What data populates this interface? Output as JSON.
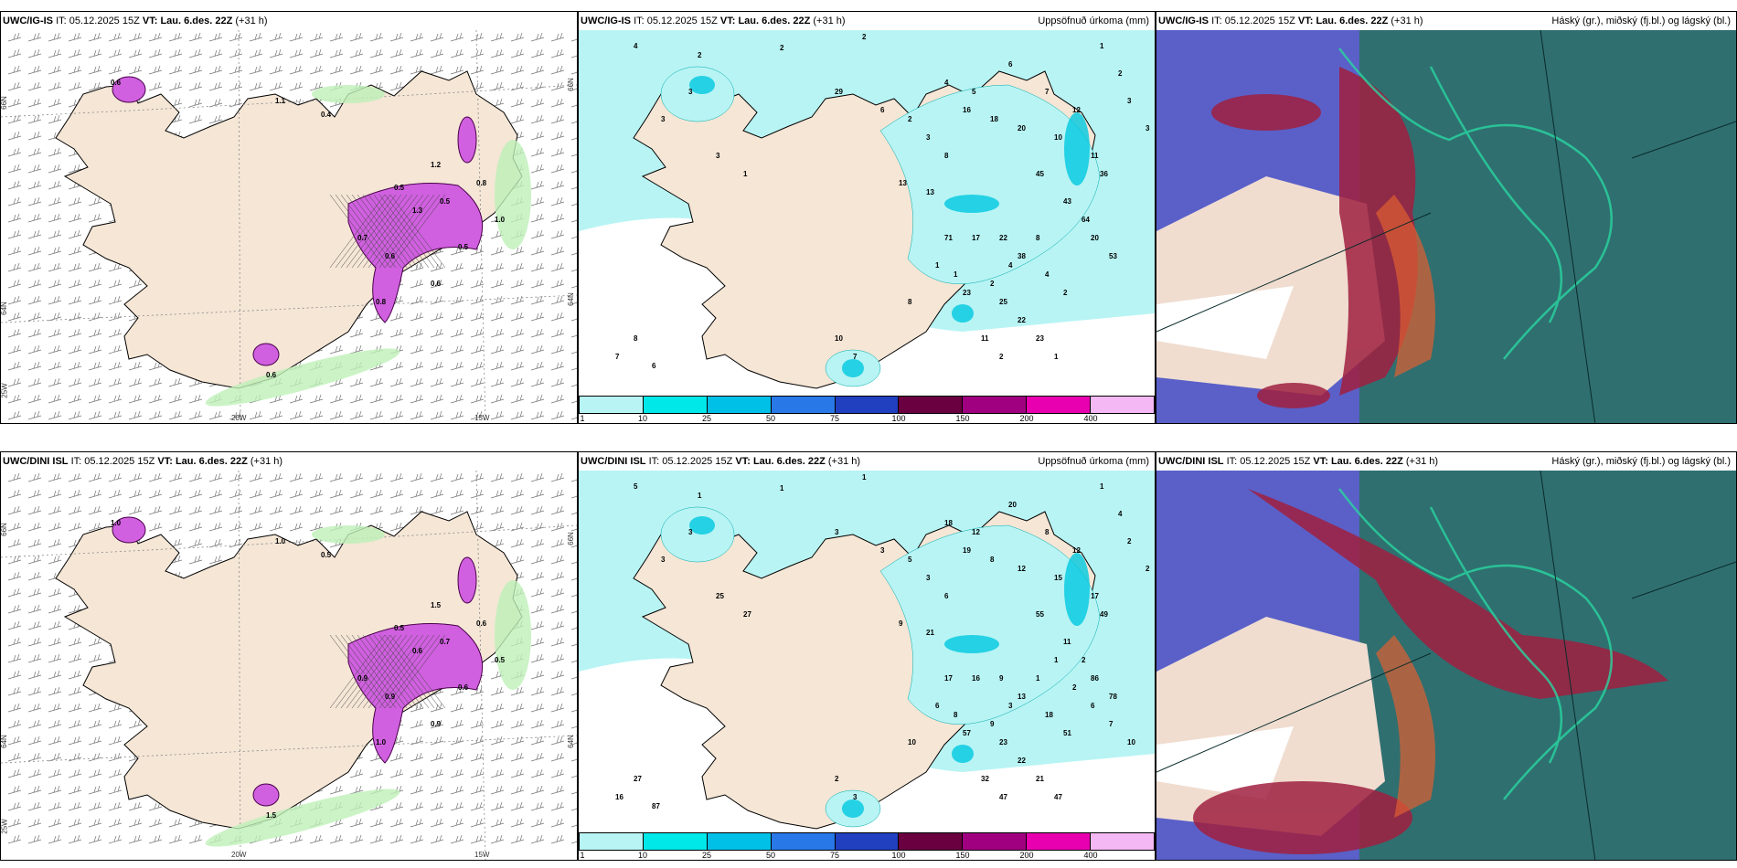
{
  "rows": [
    {
      "model": "UWC/IG-IS",
      "it_label": "IT:",
      "it_value": "05.12.2025 15Z",
      "vt_label": "VT:",
      "vt_value": "Lau. 6.des. 22Z",
      "offset": "(+31 h)",
      "precip_title": "Uppsöfnuð úrkoma (mm)",
      "cloud_title": "Háský (gr.), miðský (fj.bl.) og lágský (bl.)",
      "lon_labels": [
        "20W",
        "15W"
      ],
      "lat_labels": [
        "66N",
        "64N",
        "25W",
        "66N",
        "64N"
      ],
      "precip_values": [
        "4",
        "2",
        "2",
        "1",
        "2",
        "3",
        "3",
        "2",
        "3",
        "3",
        "3",
        "1",
        "29",
        "6",
        "2",
        "3",
        "8",
        "13",
        "13",
        "16",
        "18",
        "20",
        "4",
        "5",
        "6",
        "7",
        "12",
        "10",
        "11",
        "36",
        "45",
        "43",
        "64",
        "20",
        "53",
        "71",
        "17",
        "22",
        "38",
        "4",
        "2",
        "23",
        "25",
        "22",
        "23",
        "11",
        "2",
        "1",
        "8",
        "7",
        "6",
        "10",
        "7",
        "8",
        "1",
        "1",
        "2",
        "4",
        "8"
      ],
      "wind_values": [
        "0.6",
        "1.1",
        "0.4",
        "1.2",
        "0.5",
        "0.6",
        "0.8",
        "1.0",
        "0.5",
        "0.6",
        "0.7",
        "1.3",
        "0.8",
        "0.5",
        "0.6"
      ]
    },
    {
      "model": "UWC/DINI ISL",
      "it_label": "IT:",
      "it_value": "05.12.2025 15Z",
      "vt_label": "VT:",
      "vt_value": "Lau. 6.des. 22Z",
      "offset": "(+31 h)",
      "precip_title": "Uppsöfnuð úrkoma (mm)",
      "cloud_title": "Háský (gr.), miðský (fj.bl.) og lágský (bl.)",
      "lon_labels": [
        "20W",
        "15W"
      ],
      "lat_labels": [
        "66N",
        "64N",
        "25W",
        "66N",
        "64N"
      ],
      "precip_values": [
        "5",
        "1",
        "1",
        "1",
        "4",
        "2",
        "2",
        "1",
        "3",
        "3",
        "25",
        "27",
        "3",
        "3",
        "5",
        "3",
        "6",
        "9",
        "21",
        "19",
        "8",
        "12",
        "18",
        "12",
        "20",
        "8",
        "12",
        "15",
        "17",
        "49",
        "55",
        "11",
        "2",
        "86",
        "78",
        "17",
        "16",
        "9",
        "13",
        "18",
        "51",
        "57",
        "23",
        "22",
        "21",
        "32",
        "47",
        "47",
        "27",
        "16",
        "87",
        "2",
        "3",
        "10",
        "6",
        "8",
        "9",
        "3",
        "1",
        "1",
        "2",
        "6",
        "7",
        "10"
      ],
      "wind_values": [
        "1.0",
        "1.0",
        "0.5",
        "1.5",
        "0.7",
        "0.9",
        "1.0",
        "0.5",
        "0.6",
        "1.5",
        "0.9",
        "0.6",
        "0.6",
        "0.5",
        "0.9"
      ]
    }
  ],
  "legend": {
    "ticks": [
      "1",
      "10",
      "25",
      "50",
      "75",
      "100",
      "150",
      "200",
      "400"
    ],
    "colors": [
      "#b8f4f4",
      "#00e8e8",
      "#00c0e8",
      "#2878e8",
      "#2040c0",
      "#6a0040",
      "#a00080",
      "#e800b0",
      "#f4b8f4"
    ]
  },
  "colors": {
    "land": "#f5e6d6",
    "precip_light": "#b8f4f4",
    "precip_mid": "#00c8e0",
    "wind_hi": "#d060e0",
    "sea_cloud": "#2f6f70"
  }
}
